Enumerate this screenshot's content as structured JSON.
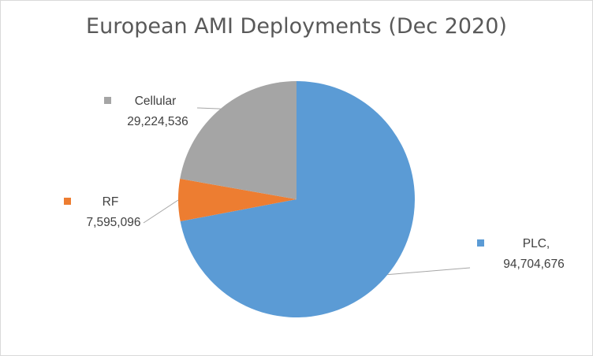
{
  "chart_data": {
    "type": "pie",
    "title": "European AMI Deployments (Dec 2020)",
    "slices": [
      {
        "name": "PLC",
        "label_name": "PLC,",
        "value": 94704676,
        "value_label": "94,704,676",
        "color": "#5b9bd5"
      },
      {
        "name": "RF",
        "label_name": "RF",
        "value": 7595096,
        "value_label": "7,595,096",
        "color": "#ed7d31"
      },
      {
        "name": "Cellular",
        "label_name": "Cellular",
        "value": 29224536,
        "value_label": "29,224,536",
        "color": "#a5a5a5"
      }
    ],
    "legend": "none",
    "data_labels": "outside-with-leader-lines"
  }
}
